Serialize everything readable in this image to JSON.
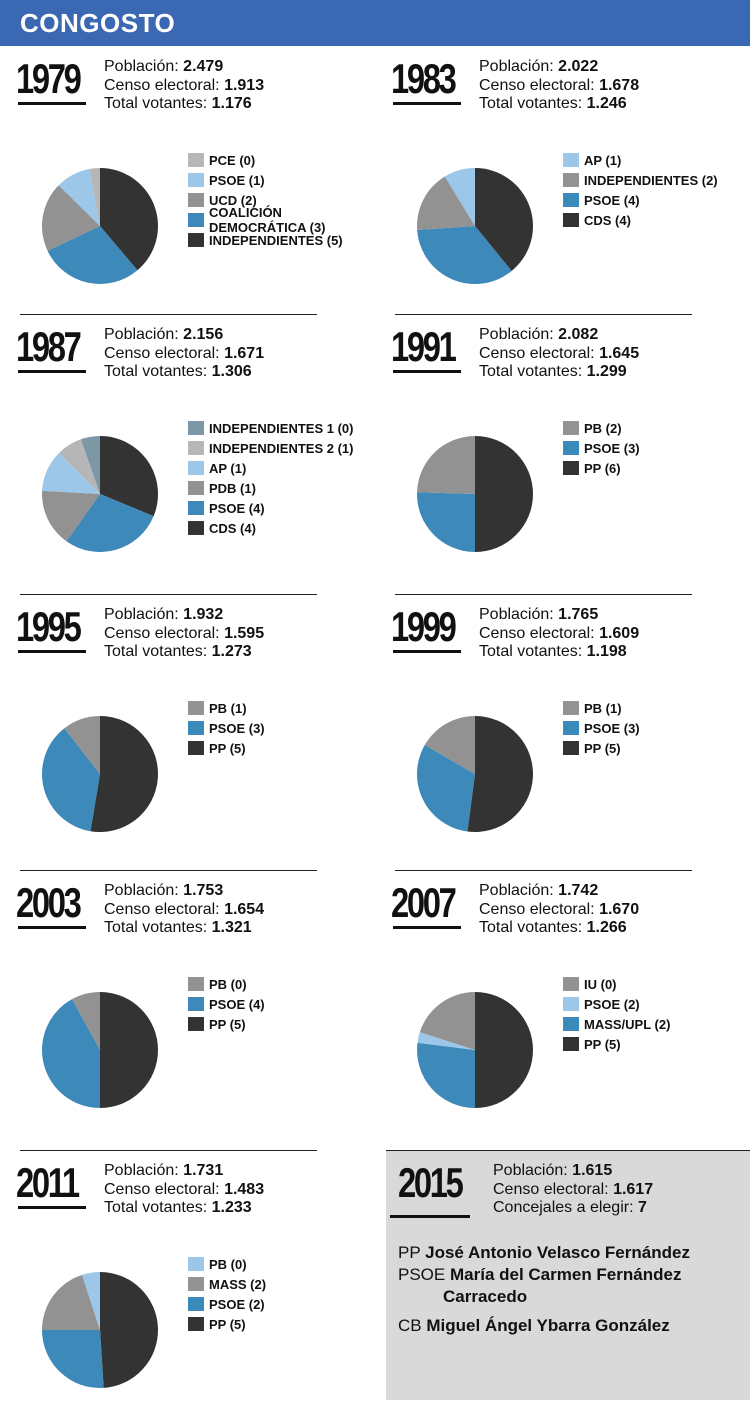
{
  "header": {
    "title": "CONGOSTO"
  },
  "labels": {
    "poblacion": "Población: ",
    "censo": "Censo electoral: ",
    "votantes": "Total votantes: ",
    "concejales": "Concejales a elegir: "
  },
  "colors": {
    "black": "#333333",
    "blue": "#3d89b9",
    "lightblue": "#9cc7e8",
    "gray": "#929292",
    "lightgray": "#b6b6b6",
    "slate": "#7c98a4",
    "header": "#3a68b2",
    "box": "#d9d9d9"
  },
  "chart_data": [
    {
      "type": "pie",
      "year": "1979",
      "poblacion": "2.479",
      "censo": "1.913",
      "votantes": "1.176",
      "slices": [
        {
          "label": "PCE (0)",
          "value": 0.3,
          "color": "lightgray"
        },
        {
          "label": "PSOE (1)",
          "value": 1,
          "color": "lightblue"
        },
        {
          "label": "UCD (2)",
          "value": 2,
          "color": "gray"
        },
        {
          "label": "COALICIÓN DEMOCRÁTICA (3)",
          "value": 3,
          "color": "blue"
        },
        {
          "label": "INDEPENDIENTES (5)",
          "value": 4,
          "color": "black"
        }
      ]
    },
    {
      "type": "pie",
      "year": "1983",
      "poblacion": "2.022",
      "censo": "1.678",
      "votantes": "1.246",
      "slices": [
        {
          "label": "AP (1)",
          "value": 1,
          "color": "lightblue"
        },
        {
          "label": "INDEPENDIENTES (2)",
          "value": 2,
          "color": "gray"
        },
        {
          "label": "PSOE (4)",
          "value": 4,
          "color": "blue"
        },
        {
          "label": "CDS (4)",
          "value": 4.5,
          "color": "black"
        }
      ]
    },
    {
      "type": "pie",
      "year": "1987",
      "poblacion": "2.156",
      "censo": "1.671",
      "votantes": "1.306",
      "slices": [
        {
          "label": "INDEPENDIENTES 1 (0)",
          "value": 0.6,
          "color": "slate"
        },
        {
          "label": "INDEPENDIENTES 2 (1)",
          "value": 0.8,
          "color": "lightgray"
        },
        {
          "label": "AP (1)",
          "value": 1.3,
          "color": "lightblue"
        },
        {
          "label": "PDB (1)",
          "value": 1.8,
          "color": "gray"
        },
        {
          "label": "PSOE (4)",
          "value": 3.2,
          "color": "blue"
        },
        {
          "label": "CDS (4)",
          "value": 3.5,
          "color": "black"
        }
      ]
    },
    {
      "type": "pie",
      "year": "1991",
      "poblacion": "2.082",
      "censo": "1.645",
      "votantes": "1.299",
      "slices": [
        {
          "label": "PB (2)",
          "value": 2.5,
          "color": "gray"
        },
        {
          "label": "PSOE (3)",
          "value": 2.6,
          "color": "blue"
        },
        {
          "label": "PP (6)",
          "value": 5.1,
          "color": "black"
        }
      ]
    },
    {
      "type": "pie",
      "year": "1995",
      "poblacion": "1.932",
      "censo": "1.595",
      "votantes": "1.273",
      "slices": [
        {
          "label": "PB (1)",
          "value": 1,
          "color": "gray"
        },
        {
          "label": "PSOE (3)",
          "value": 3.5,
          "color": "blue"
        },
        {
          "label": "PP (5)",
          "value": 5,
          "color": "black"
        }
      ]
    },
    {
      "type": "pie",
      "year": "1999",
      "poblacion": "1.765",
      "censo": "1.609",
      "votantes": "1.198",
      "slices": [
        {
          "label": "PB (1)",
          "value": 1.6,
          "color": "gray"
        },
        {
          "label": "PSOE (3)",
          "value": 3,
          "color": "blue"
        },
        {
          "label": "PP (5)",
          "value": 5,
          "color": "black"
        }
      ]
    },
    {
      "type": "pie",
      "year": "2003",
      "poblacion": "1.753",
      "censo": "1.654",
      "votantes": "1.321",
      "slices": [
        {
          "label": "PB (0)",
          "value": 0.8,
          "color": "gray"
        },
        {
          "label": "PSOE (4)",
          "value": 4.2,
          "color": "blue"
        },
        {
          "label": "PP (5)",
          "value": 5,
          "color": "black"
        }
      ]
    },
    {
      "type": "pie",
      "year": "2007",
      "poblacion": "1.742",
      "censo": "1.670",
      "votantes": "1.266",
      "slices": [
        {
          "label": "IU (0)",
          "value": 2,
          "color": "gray"
        },
        {
          "label": "PSOE (2)",
          "value": 0.3,
          "color": "lightblue"
        },
        {
          "label": "MASS/UPL (2)",
          "value": 2.7,
          "color": "blue"
        },
        {
          "label": "PP (5)",
          "value": 5,
          "color": "black"
        }
      ]
    },
    {
      "type": "pie",
      "year": "2011",
      "poblacion": "1.731",
      "censo": "1.483",
      "votantes": "1.233",
      "slices": [
        {
          "label": "PB (0)",
          "value": 0.5,
          "color": "lightblue"
        },
        {
          "label": "MASS (2)",
          "value": 2,
          "color": "gray"
        },
        {
          "label": "PSOE (2)",
          "value": 2.6,
          "color": "blue"
        },
        {
          "label": "PP (5)",
          "value": 4.9,
          "color": "black"
        }
      ]
    }
  ],
  "e2015": {
    "year": "2015",
    "poblacion": "1.615",
    "censo": "1.617",
    "concejales": "7",
    "candidates": [
      {
        "party": "PP",
        "name": "José Antonio Velasco Fernández",
        "name2": ""
      },
      {
        "party": "PSOE",
        "name": "María del Carmen Fernández",
        "name2": "Carracedo"
      },
      {
        "party": "CB",
        "name": "Miguel Ángel Ybarra González",
        "name2": ""
      }
    ]
  }
}
